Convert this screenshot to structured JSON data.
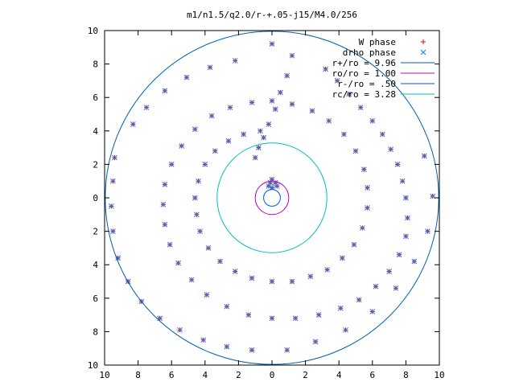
{
  "chart_data": {
    "type": "scatter",
    "title": "m1/n1.5/q2.0/r-+.05-j15/M4.0/256",
    "xlabel": "",
    "ylabel": "",
    "xlim": [
      -10,
      10
    ],
    "ylim": [
      -10,
      10
    ],
    "x_tick_labels": [
      "10",
      "8",
      "6",
      "4",
      "2",
      "0",
      "2",
      "4",
      "6",
      "8",
      "10"
    ],
    "y_tick_labels": [
      "10",
      "8",
      "6",
      "4",
      "2",
      "0",
      "2",
      "4",
      "6",
      "8",
      "10"
    ],
    "grid": false,
    "legend_position": "top-right",
    "colors": {
      "w_phase": "#ff0000",
      "drho_phase": "#0080ff",
      "r_plus": "#0060ad",
      "ro": "#c000c0",
      "r_minus": "#0050ff",
      "rc": "#00c0c0"
    },
    "points_note": "",
    "series": [
      {
        "name": "W phase",
        "kind": "points",
        "marker": "+",
        "points": [
          [
            0.0,
            9.2
          ],
          [
            1.2,
            8.5
          ],
          [
            0.9,
            7.3
          ],
          [
            0.5,
            6.3
          ],
          [
            0.2,
            5.3
          ],
          [
            -0.2,
            4.4
          ],
          [
            -0.5,
            3.6
          ],
          [
            -0.8,
            3.0
          ],
          [
            -1.0,
            2.4
          ],
          [
            3.2,
            7.7
          ],
          [
            3.9,
            7.0
          ],
          [
            4.6,
            6.2
          ],
          [
            5.3,
            5.4
          ],
          [
            6.0,
            4.6
          ],
          [
            6.6,
            3.8
          ],
          [
            7.1,
            2.9
          ],
          [
            7.5,
            2.0
          ],
          [
            7.8,
            1.0
          ],
          [
            8.0,
            0.0
          ],
          [
            8.1,
            -1.2
          ],
          [
            8.0,
            -2.3
          ],
          [
            7.6,
            -3.4
          ],
          [
            7.0,
            -4.4
          ],
          [
            6.2,
            -5.3
          ],
          [
            5.2,
            -6.1
          ],
          [
            4.1,
            -6.6
          ],
          [
            2.8,
            -7.0
          ],
          [
            1.4,
            -7.2
          ],
          [
            0.0,
            -7.2
          ],
          [
            -1.4,
            -7.0
          ],
          [
            -2.7,
            -6.5
          ],
          [
            -3.9,
            -5.8
          ],
          [
            -4.8,
            -4.9
          ],
          [
            -5.6,
            -3.9
          ],
          [
            -6.1,
            -2.8
          ],
          [
            -6.4,
            -1.6
          ],
          [
            -6.5,
            -0.4
          ],
          [
            -6.4,
            0.8
          ],
          [
            -6.0,
            2.0
          ],
          [
            -5.4,
            3.1
          ],
          [
            -4.6,
            4.1
          ],
          [
            -3.6,
            4.9
          ],
          [
            -2.5,
            5.4
          ],
          [
            -1.2,
            5.7
          ],
          [
            0.0,
            5.8
          ],
          [
            1.2,
            5.6
          ],
          [
            2.4,
            5.2
          ],
          [
            3.4,
            4.6
          ],
          [
            4.3,
            3.8
          ],
          [
            5.0,
            2.8
          ],
          [
            5.5,
            1.7
          ],
          [
            5.7,
            0.6
          ],
          [
            5.7,
            -0.6
          ],
          [
            5.4,
            -1.8
          ],
          [
            4.9,
            -2.8
          ],
          [
            4.2,
            -3.6
          ],
          [
            3.3,
            -4.3
          ],
          [
            2.3,
            -4.7
          ],
          [
            1.2,
            -5.0
          ],
          [
            0.0,
            -5.0
          ],
          [
            -1.2,
            -4.8
          ],
          [
            -2.2,
            -4.4
          ],
          [
            -3.1,
            -3.8
          ],
          [
            -3.8,
            -3.0
          ],
          [
            -4.3,
            -2.0
          ],
          [
            -4.5,
            -1.0
          ],
          [
            -4.6,
            0.0
          ],
          [
            -4.4,
            1.0
          ],
          [
            -4.0,
            2.0
          ],
          [
            -3.4,
            2.8
          ],
          [
            -2.6,
            3.4
          ],
          [
            -1.7,
            3.8
          ],
          [
            -0.7,
            4.0
          ],
          [
            -9.4,
            2.4
          ],
          [
            -9.5,
            1.0
          ],
          [
            -9.6,
            -0.5
          ],
          [
            -9.5,
            -2.0
          ],
          [
            -9.2,
            -3.6
          ],
          [
            -8.6,
            -5.0
          ],
          [
            -7.8,
            -6.2
          ],
          [
            -6.7,
            -7.2
          ],
          [
            -5.5,
            -7.9
          ],
          [
            -4.1,
            -8.5
          ],
          [
            -2.7,
            -8.9
          ],
          [
            -1.2,
            -9.1
          ],
          [
            -8.3,
            4.4
          ],
          [
            -7.5,
            5.4
          ],
          [
            -6.4,
            6.4
          ],
          [
            -5.1,
            7.2
          ],
          [
            -3.7,
            7.8
          ],
          [
            -2.2,
            8.2
          ],
          [
            9.1,
            2.5
          ],
          [
            9.6,
            0.1
          ],
          [
            9.3,
            -2.0
          ],
          [
            8.5,
            -3.8
          ],
          [
            7.4,
            -5.4
          ],
          [
            6.0,
            -6.8
          ],
          [
            4.4,
            -7.9
          ],
          [
            2.6,
            -8.6
          ],
          [
            0.9,
            -9.1
          ],
          [
            0.0,
            1.1
          ],
          [
            0.2,
            0.9
          ],
          [
            0.3,
            0.7
          ],
          [
            -0.1,
            0.9
          ],
          [
            -0.2,
            0.7
          ],
          [
            0.0,
            0.6
          ]
        ]
      },
      {
        "name": "drho phase",
        "kind": "points",
        "marker": "x",
        "points": [
          [
            0.0,
            9.2
          ],
          [
            1.2,
            8.5
          ],
          [
            0.9,
            7.3
          ],
          [
            0.5,
            6.3
          ],
          [
            0.2,
            5.3
          ],
          [
            -0.2,
            4.4
          ],
          [
            -0.5,
            3.6
          ],
          [
            -0.8,
            3.0
          ],
          [
            -1.0,
            2.4
          ],
          [
            3.2,
            7.7
          ],
          [
            3.9,
            7.0
          ],
          [
            4.6,
            6.2
          ],
          [
            5.3,
            5.4
          ],
          [
            6.0,
            4.6
          ],
          [
            6.6,
            3.8
          ],
          [
            7.1,
            2.9
          ],
          [
            7.5,
            2.0
          ],
          [
            7.8,
            1.0
          ],
          [
            8.0,
            0.0
          ],
          [
            8.1,
            -1.2
          ],
          [
            8.0,
            -2.3
          ],
          [
            7.6,
            -3.4
          ],
          [
            7.0,
            -4.4
          ],
          [
            6.2,
            -5.3
          ],
          [
            5.2,
            -6.1
          ],
          [
            4.1,
            -6.6
          ],
          [
            2.8,
            -7.0
          ],
          [
            1.4,
            -7.2
          ],
          [
            0.0,
            -7.2
          ],
          [
            -1.4,
            -7.0
          ],
          [
            -2.7,
            -6.5
          ],
          [
            -3.9,
            -5.8
          ],
          [
            -4.8,
            -4.9
          ],
          [
            -5.6,
            -3.9
          ],
          [
            -6.1,
            -2.8
          ],
          [
            -6.4,
            -1.6
          ],
          [
            -6.5,
            -0.4
          ],
          [
            -6.4,
            0.8
          ],
          [
            -6.0,
            2.0
          ],
          [
            -5.4,
            3.1
          ],
          [
            -4.6,
            4.1
          ],
          [
            -3.6,
            4.9
          ],
          [
            -2.5,
            5.4
          ],
          [
            -1.2,
            5.7
          ],
          [
            0.0,
            5.8
          ],
          [
            1.2,
            5.6
          ],
          [
            2.4,
            5.2
          ],
          [
            3.4,
            4.6
          ],
          [
            4.3,
            3.8
          ],
          [
            5.0,
            2.8
          ],
          [
            5.5,
            1.7
          ],
          [
            5.7,
            0.6
          ],
          [
            5.7,
            -0.6
          ],
          [
            5.4,
            -1.8
          ],
          [
            4.9,
            -2.8
          ],
          [
            4.2,
            -3.6
          ],
          [
            3.3,
            -4.3
          ],
          [
            2.3,
            -4.7
          ],
          [
            1.2,
            -5.0
          ],
          [
            0.0,
            -5.0
          ],
          [
            -1.2,
            -4.8
          ],
          [
            -2.2,
            -4.4
          ],
          [
            -3.1,
            -3.8
          ],
          [
            -3.8,
            -3.0
          ],
          [
            -4.3,
            -2.0
          ],
          [
            -4.5,
            -1.0
          ],
          [
            -4.6,
            0.0
          ],
          [
            -4.4,
            1.0
          ],
          [
            -4.0,
            2.0
          ],
          [
            -3.4,
            2.8
          ],
          [
            -2.6,
            3.4
          ],
          [
            -1.7,
            3.8
          ],
          [
            -0.7,
            4.0
          ],
          [
            -9.4,
            2.4
          ],
          [
            -9.5,
            1.0
          ],
          [
            -9.6,
            -0.5
          ],
          [
            -9.5,
            -2.0
          ],
          [
            -9.2,
            -3.6
          ],
          [
            -8.6,
            -5.0
          ],
          [
            -7.8,
            -6.2
          ],
          [
            -6.7,
            -7.2
          ],
          [
            -5.5,
            -7.9
          ],
          [
            -4.1,
            -8.5
          ],
          [
            -2.7,
            -8.9
          ],
          [
            -1.2,
            -9.1
          ],
          [
            -8.3,
            4.4
          ],
          [
            -7.5,
            5.4
          ],
          [
            -6.4,
            6.4
          ],
          [
            -5.1,
            7.2
          ],
          [
            -3.7,
            7.8
          ],
          [
            -2.2,
            8.2
          ],
          [
            9.1,
            2.5
          ],
          [
            9.6,
            0.1
          ],
          [
            9.3,
            -2.0
          ],
          [
            8.5,
            -3.8
          ],
          [
            7.4,
            -5.4
          ],
          [
            6.0,
            -6.8
          ],
          [
            4.4,
            -7.9
          ],
          [
            2.6,
            -8.6
          ],
          [
            0.9,
            -9.1
          ],
          [
            0.0,
            1.1
          ],
          [
            0.2,
            0.9
          ],
          [
            0.3,
            0.7
          ],
          [
            -0.1,
            0.9
          ],
          [
            -0.2,
            0.7
          ],
          [
            0.0,
            0.6
          ]
        ]
      },
      {
        "name": "r+/ro = 9.96",
        "kind": "circle",
        "radius": 9.96
      },
      {
        "name": "ro/ro = 1.00",
        "kind": "circle",
        "radius": 1.0
      },
      {
        "name": "r-/ro = .50",
        "kind": "circle",
        "radius": 0.5
      },
      {
        "name": "rc/ro = 3.28",
        "kind": "circle",
        "radius": 3.28
      }
    ]
  }
}
